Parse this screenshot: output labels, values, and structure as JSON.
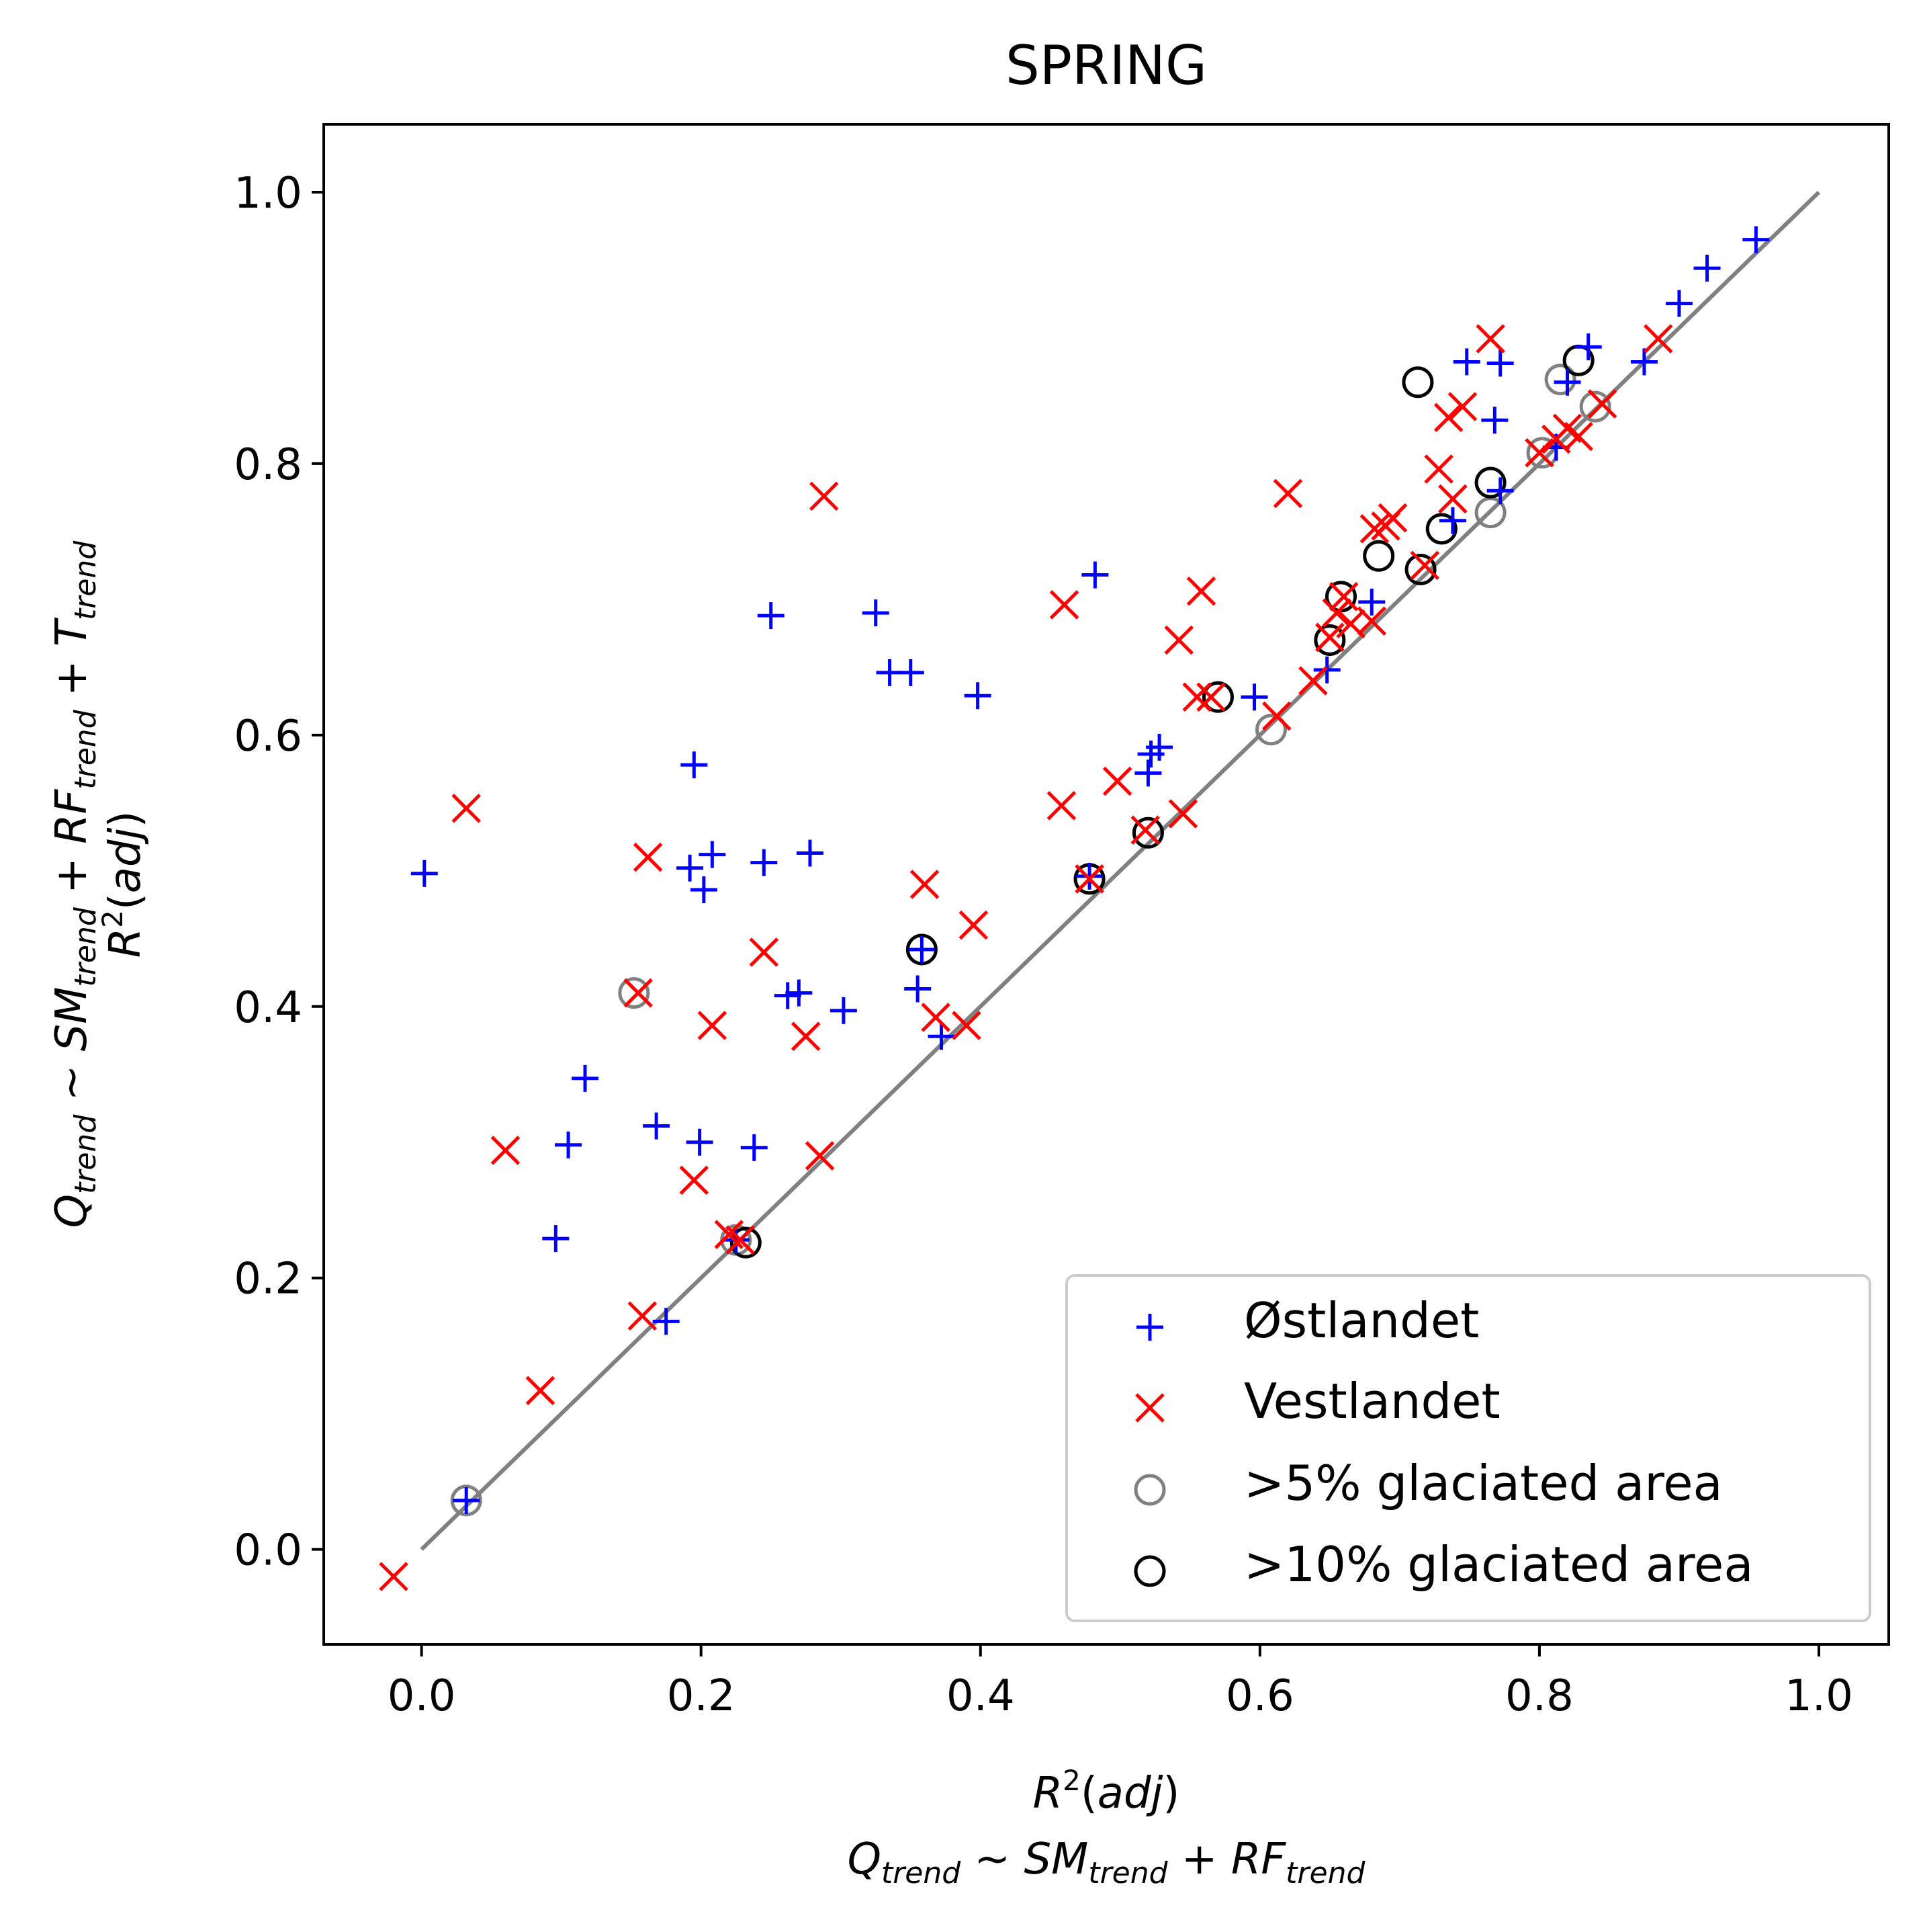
{
  "chart_data": {
    "type": "scatter",
    "title": "SPRING",
    "xlabel_lines": [
      "R²(adj)",
      "Q_trend ~ SM_trend + RF_trend"
    ],
    "ylabel_lines": [
      "Q_trend ~ SM_trend + RF_trend + T_trend",
      "R²(adj)"
    ],
    "xlim": [
      -0.07,
      1.05
    ],
    "ylim": [
      -0.07,
      1.05
    ],
    "xticks": [
      0.0,
      0.2,
      0.4,
      0.6,
      0.8,
      1.0
    ],
    "yticks": [
      0.0,
      0.2,
      0.4,
      0.6,
      0.8,
      1.0
    ],
    "tick_labels": [
      "0.0",
      "0.2",
      "0.4",
      "0.6",
      "0.8",
      "1.0"
    ],
    "grid": false,
    "legend_position": "lower-right",
    "reference_line": {
      "from": [
        0,
        0
      ],
      "to": [
        1,
        1
      ],
      "color": "#808080"
    },
    "series": [
      {
        "name": "Østlandet",
        "marker": "plus",
        "color": "#0000ff",
        "points": [
          [
            0.002,
            0.498
          ],
          [
            0.032,
            0.036
          ],
          [
            0.096,
            0.229
          ],
          [
            0.105,
            0.298
          ],
          [
            0.117,
            0.347
          ],
          [
            0.168,
            0.312
          ],
          [
            0.175,
            0.168
          ],
          [
            0.192,
            0.502
          ],
          [
            0.195,
            0.578
          ],
          [
            0.199,
            0.3
          ],
          [
            0.202,
            0.486
          ],
          [
            0.208,
            0.512
          ],
          [
            0.225,
            0.228
          ],
          [
            0.238,
            0.296
          ],
          [
            0.245,
            0.506
          ],
          [
            0.25,
            0.688
          ],
          [
            0.262,
            0.408
          ],
          [
            0.27,
            0.41
          ],
          [
            0.278,
            0.513
          ],
          [
            0.302,
            0.397
          ],
          [
            0.325,
            0.69
          ],
          [
            0.335,
            0.646
          ],
          [
            0.35,
            0.646
          ],
          [
            0.355,
            0.413
          ],
          [
            0.358,
            0.442
          ],
          [
            0.372,
            0.378
          ],
          [
            0.398,
            0.629
          ],
          [
            0.478,
            0.496
          ],
          [
            0.482,
            0.718
          ],
          [
            0.52,
            0.572
          ],
          [
            0.522,
            0.586
          ],
          [
            0.528,
            0.591
          ],
          [
            0.596,
            0.628
          ],
          [
            0.648,
            0.648
          ],
          [
            0.68,
            0.698
          ],
          [
            0.738,
            0.758
          ],
          [
            0.748,
            0.875
          ],
          [
            0.768,
            0.832
          ],
          [
            0.772,
            0.874
          ],
          [
            0.772,
            0.78
          ],
          [
            0.812,
            0.812
          ],
          [
            0.82,
            0.86
          ],
          [
            0.835,
            0.886
          ],
          [
            0.875,
            0.875
          ],
          [
            0.9,
            0.918
          ],
          [
            0.92,
            0.944
          ],
          [
            0.955,
            0.965
          ]
        ]
      },
      {
        "name": "Vestlandet",
        "marker": "x",
        "color": "#ff0000",
        "points": [
          [
            -0.02,
            -0.02
          ],
          [
            0.032,
            0.546
          ],
          [
            0.06,
            0.294
          ],
          [
            0.085,
            0.117
          ],
          [
            0.155,
            0.41
          ],
          [
            0.158,
            0.172
          ],
          [
            0.162,
            0.51
          ],
          [
            0.195,
            0.272
          ],
          [
            0.208,
            0.386
          ],
          [
            0.22,
            0.232
          ],
          [
            0.228,
            0.228
          ],
          [
            0.245,
            0.44
          ],
          [
            0.275,
            0.378
          ],
          [
            0.285,
            0.29
          ],
          [
            0.288,
            0.776
          ],
          [
            0.36,
            0.49
          ],
          [
            0.368,
            0.392
          ],
          [
            0.39,
            0.386
          ],
          [
            0.395,
            0.46
          ],
          [
            0.458,
            0.548
          ],
          [
            0.46,
            0.696
          ],
          [
            0.478,
            0.494
          ],
          [
            0.498,
            0.566
          ],
          [
            0.518,
            0.53
          ],
          [
            0.542,
            0.67
          ],
          [
            0.545,
            0.542
          ],
          [
            0.555,
            0.628
          ],
          [
            0.558,
            0.706
          ],
          [
            0.565,
            0.628
          ],
          [
            0.612,
            0.614
          ],
          [
            0.62,
            0.778
          ],
          [
            0.638,
            0.64
          ],
          [
            0.65,
            0.672
          ],
          [
            0.655,
            0.69
          ],
          [
            0.66,
            0.702
          ],
          [
            0.665,
            0.682
          ],
          [
            0.68,
            0.684
          ],
          [
            0.682,
            0.752
          ],
          [
            0.69,
            0.754
          ],
          [
            0.695,
            0.76
          ],
          [
            0.718,
            0.725
          ],
          [
            0.728,
            0.796
          ],
          [
            0.735,
            0.834
          ],
          [
            0.738,
            0.774
          ],
          [
            0.745,
            0.842
          ],
          [
            0.765,
            0.892
          ],
          [
            0.8,
            0.808
          ],
          [
            0.812,
            0.818
          ],
          [
            0.82,
            0.826
          ],
          [
            0.828,
            0.82
          ],
          [
            0.845,
            0.844
          ],
          [
            0.885,
            0.892
          ]
        ]
      },
      {
        "name": ">5% glaciated area",
        "marker": "circle",
        "color": "#808080",
        "points": [
          [
            0.032,
            0.036
          ],
          [
            0.152,
            0.41
          ],
          [
            0.225,
            0.228
          ],
          [
            0.608,
            0.604
          ],
          [
            0.765,
            0.764
          ],
          [
            0.802,
            0.808
          ],
          [
            0.815,
            0.862
          ],
          [
            0.84,
            0.842
          ]
        ]
      },
      {
        "name": ">10% glaciated area",
        "marker": "circle",
        "color": "#000000",
        "points": [
          [
            0.232,
            0.226
          ],
          [
            0.358,
            0.442
          ],
          [
            0.478,
            0.494
          ],
          [
            0.52,
            0.528
          ],
          [
            0.57,
            0.628
          ],
          [
            0.65,
            0.67
          ],
          [
            0.658,
            0.702
          ],
          [
            0.685,
            0.732
          ],
          [
            0.713,
            0.86
          ],
          [
            0.715,
            0.722
          ],
          [
            0.73,
            0.752
          ],
          [
            0.765,
            0.786
          ],
          [
            0.828,
            0.876
          ]
        ]
      }
    ]
  }
}
